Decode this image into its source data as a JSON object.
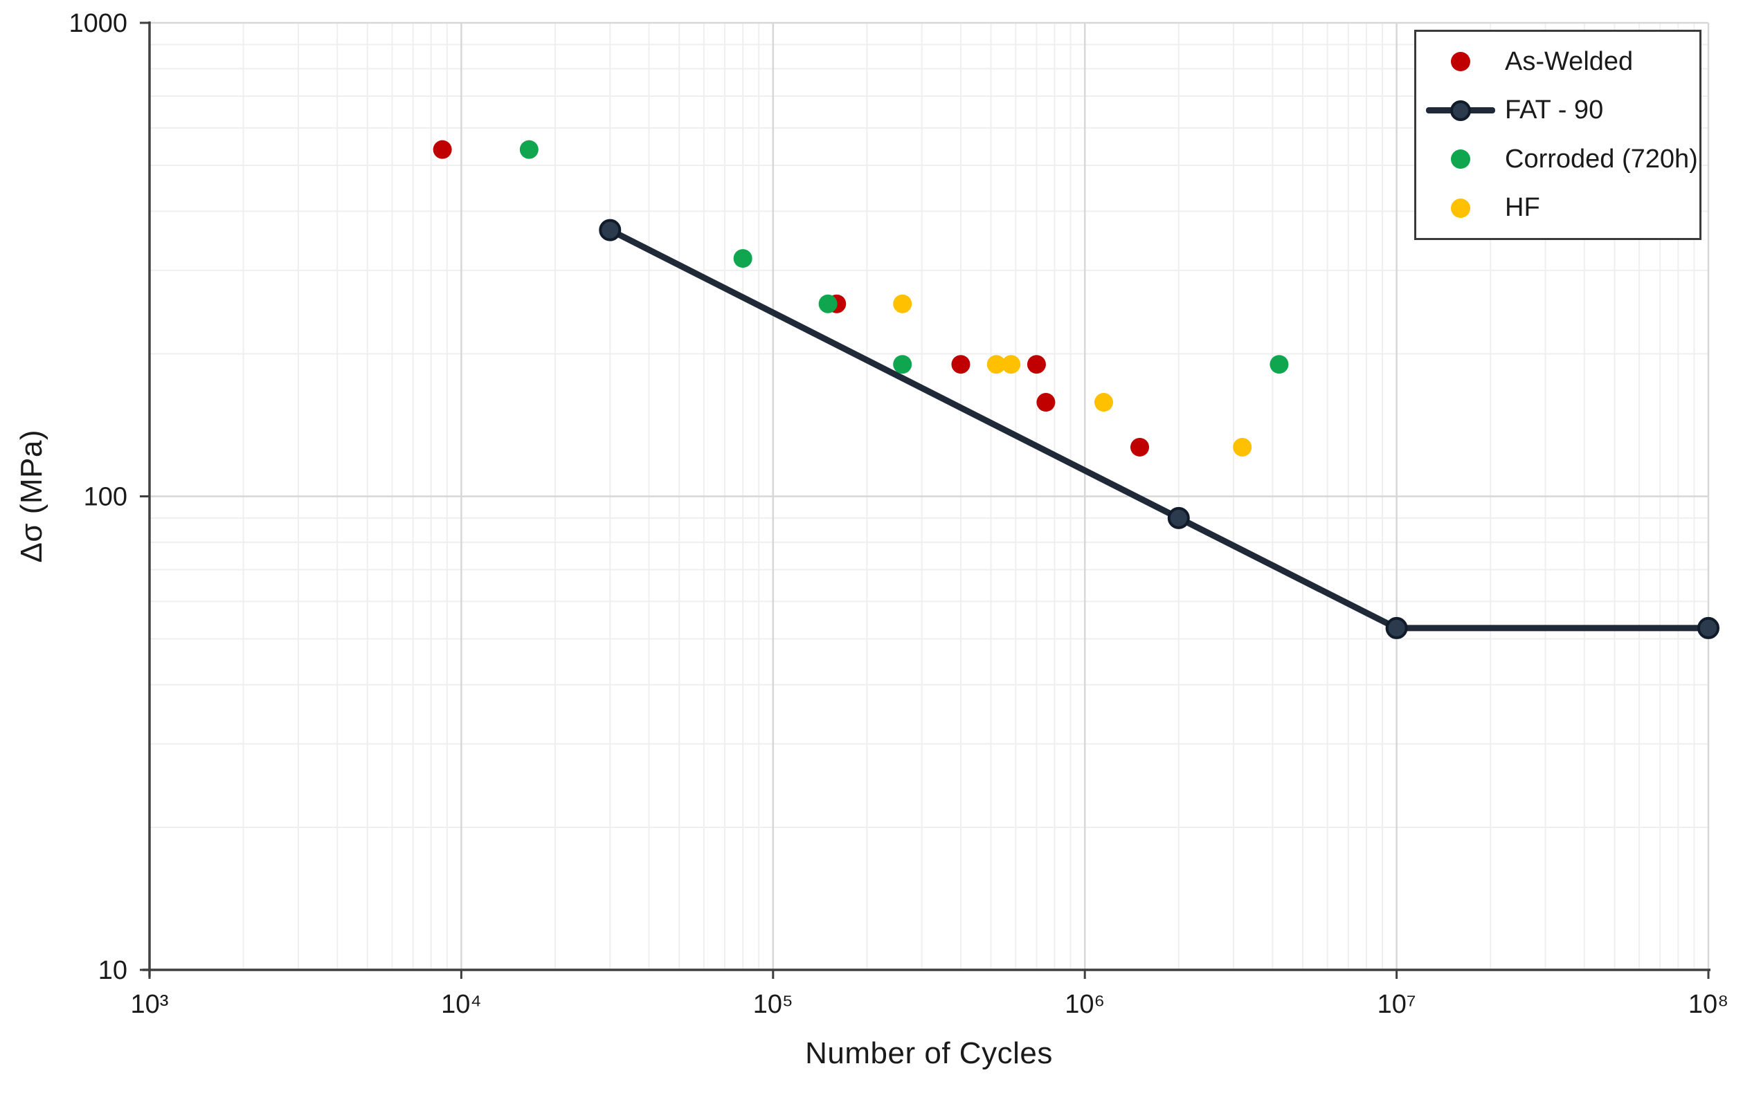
{
  "chart_data": {
    "type": "scatter",
    "title": "",
    "xlabel": "Number of Cycles",
    "ylabel": "Δσ (MPa)",
    "x_scale": "log",
    "y_scale": "log",
    "xlim": [
      1000,
      100000000
    ],
    "ylim": [
      10,
      1000
    ],
    "grid": "log major and minor gridlines on",
    "legend_position": "top-right",
    "x_ticks": [
      {
        "value": 1000,
        "label": "10³"
      },
      {
        "value": 10000,
        "label": "10⁴"
      },
      {
        "value": 100000,
        "label": "10⁵"
      },
      {
        "value": 1000000,
        "label": "10⁶"
      },
      {
        "value": 10000000,
        "label": "10⁷"
      },
      {
        "value": 100000000,
        "label": "10⁸"
      }
    ],
    "y_ticks": [
      {
        "value": 1000,
        "label": "1000"
      },
      {
        "value": 100,
        "label": "100"
      },
      {
        "value": 10,
        "label": "10"
      }
    ],
    "series": [
      {
        "name": "As-Welded",
        "type": "scatter",
        "color": "#C00000",
        "points": [
          [
            8700,
            540
          ],
          [
            160000,
            255
          ],
          [
            400000,
            190
          ],
          [
            700000,
            190
          ],
          [
            750000,
            158
          ],
          [
            1500000,
            127
          ]
        ]
      },
      {
        "name": "FAT - 90",
        "type": "line",
        "color": "#1F2937",
        "marker_fill": "#2B3A4D",
        "marker_stroke": "#111C2B",
        "points": [
          [
            30000,
            365
          ],
          [
            2000000,
            90
          ],
          [
            10000000,
            52.7
          ],
          [
            100000000,
            52.7
          ]
        ]
      },
      {
        "name": "Corroded (720h)",
        "type": "scatter",
        "color": "#10A64F",
        "points": [
          [
            16500,
            540
          ],
          [
            80000,
            318
          ],
          [
            150000,
            255
          ],
          [
            260000,
            190
          ],
          [
            4200000,
            190
          ]
        ]
      },
      {
        "name": "HF",
        "type": "scatter",
        "color": "#FFC000",
        "points": [
          [
            260000,
            255
          ],
          [
            520000,
            190
          ],
          [
            580000,
            190
          ],
          [
            1150000,
            158
          ],
          [
            3200000,
            127
          ]
        ]
      }
    ],
    "colors": {
      "background": "#FFFFFF",
      "grid_major": "#D7D7D7",
      "grid_minor": "#EFEFEF",
      "axis": "#3F3F3F",
      "text": "#1A1A1A"
    }
  }
}
